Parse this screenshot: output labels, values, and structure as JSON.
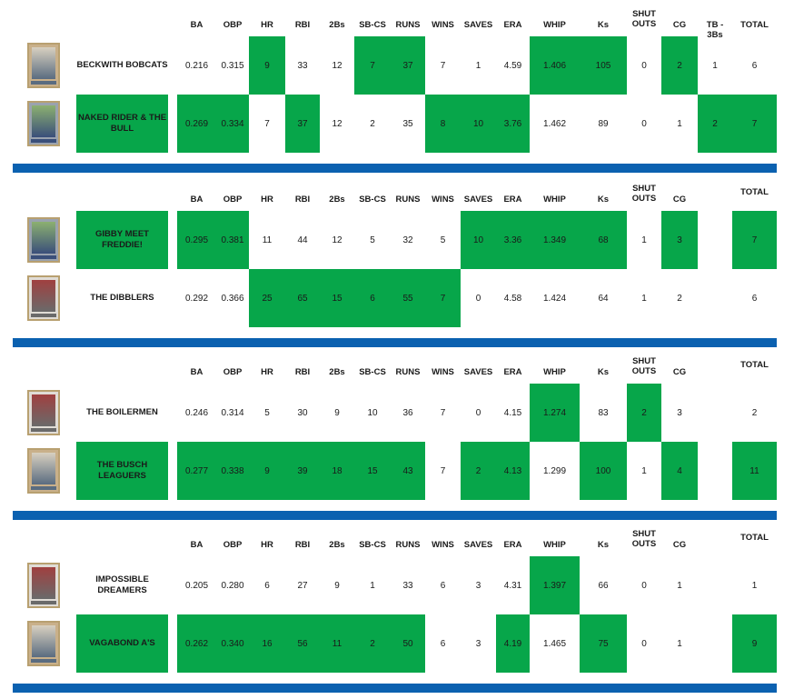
{
  "headers": [
    "BA",
    "OBP",
    "HR",
    "RBI",
    "2Bs",
    "SB-CS",
    "RUNS",
    "WINS",
    "SAVES",
    "ERA",
    "WHIP",
    "Ks",
    "SHUT OUTS",
    "CG",
    "TB - 3Bs",
    "TOTAL"
  ],
  "matchups": [
    {
      "show_tb": true,
      "teams": [
        {
          "name": "BECKWITH BOBCATS",
          "values": [
            "0.216",
            "0.315",
            "9",
            "33",
            "12",
            "7",
            "37",
            "7",
            "1",
            "4.59",
            "1.406",
            "105",
            "0",
            "2",
            "1",
            "6"
          ],
          "wins": [
            false,
            false,
            true,
            false,
            false,
            true,
            true,
            false,
            false,
            false,
            true,
            true,
            false,
            true,
            false,
            false
          ],
          "card": "pitcher-card-icon"
        },
        {
          "name": "NAKED RIDER & THE BULL",
          "values": [
            "0.269",
            "0.334",
            "7",
            "37",
            "12",
            "2",
            "35",
            "8",
            "10",
            "3.76",
            "1.462",
            "89",
            "0",
            "1",
            "2",
            "7"
          ],
          "wins": [
            true,
            true,
            false,
            true,
            false,
            false,
            false,
            true,
            true,
            true,
            false,
            false,
            false,
            false,
            true,
            true
          ],
          "card": "batter-card-icon"
        }
      ]
    },
    {
      "show_tb": false,
      "teams": [
        {
          "name": "GIBBY MEET FREDDIE!",
          "values": [
            "0.295",
            "0.381",
            "11",
            "44",
            "12",
            "5",
            "32",
            "5",
            "10",
            "3.36",
            "1.349",
            "68",
            "1",
            "3",
            "",
            "7"
          ],
          "wins": [
            true,
            true,
            false,
            false,
            false,
            false,
            false,
            false,
            true,
            true,
            true,
            true,
            false,
            true,
            false,
            true
          ],
          "card": "batter-card-icon"
        },
        {
          "name": "THE DIBBLERS",
          "values": [
            "0.292",
            "0.366",
            "25",
            "65",
            "15",
            "6",
            "55",
            "7",
            "0",
            "4.58",
            "1.424",
            "64",
            "1",
            "2",
            "",
            "6"
          ],
          "wins": [
            false,
            false,
            true,
            true,
            true,
            true,
            true,
            true,
            false,
            false,
            false,
            false,
            false,
            false,
            false,
            false
          ],
          "card": "portrait-card-icon"
        }
      ]
    },
    {
      "show_tb": false,
      "teams": [
        {
          "name": "THE BOILERMEN",
          "values": [
            "0.246",
            "0.314",
            "5",
            "30",
            "9",
            "10",
            "36",
            "7",
            "0",
            "4.15",
            "1.274",
            "83",
            "2",
            "3",
            "",
            "2"
          ],
          "wins": [
            false,
            false,
            false,
            false,
            false,
            false,
            false,
            false,
            false,
            false,
            true,
            false,
            true,
            false,
            false,
            false
          ],
          "card": "portrait-card-icon"
        },
        {
          "name": "THE BUSCH LEAGUERS",
          "values": [
            "0.277",
            "0.338",
            "9",
            "39",
            "18",
            "15",
            "43",
            "7",
            "2",
            "4.13",
            "1.299",
            "100",
            "1",
            "4",
            "",
            "11"
          ],
          "wins": [
            true,
            true,
            true,
            true,
            true,
            true,
            true,
            false,
            true,
            true,
            false,
            true,
            false,
            true,
            false,
            true
          ],
          "card": "pitcher-card-icon"
        }
      ]
    },
    {
      "show_tb": false,
      "teams": [
        {
          "name": "IMPOSSIBLE DREAMERS",
          "values": [
            "0.205",
            "0.280",
            "6",
            "27",
            "9",
            "1",
            "33",
            "6",
            "3",
            "4.31",
            "1.397",
            "66",
            "0",
            "1",
            "",
            "1"
          ],
          "wins": [
            false,
            false,
            false,
            false,
            false,
            false,
            false,
            false,
            false,
            false,
            true,
            false,
            false,
            false,
            false,
            false
          ],
          "card": "portrait-card-icon"
        },
        {
          "name": "VAGABOND A's",
          "values": [
            "0.262",
            "0.340",
            "16",
            "56",
            "11",
            "2",
            "50",
            "6",
            "3",
            "4.19",
            "1.465",
            "75",
            "0",
            "1",
            "",
            "9"
          ],
          "wins": [
            true,
            true,
            true,
            true,
            true,
            true,
            true,
            false,
            false,
            true,
            false,
            true,
            false,
            false,
            false,
            true
          ],
          "card": "pitcher-card-icon"
        }
      ]
    }
  ],
  "colors": {
    "win_highlight": "#07a64a",
    "divider": "#0b61b0"
  }
}
